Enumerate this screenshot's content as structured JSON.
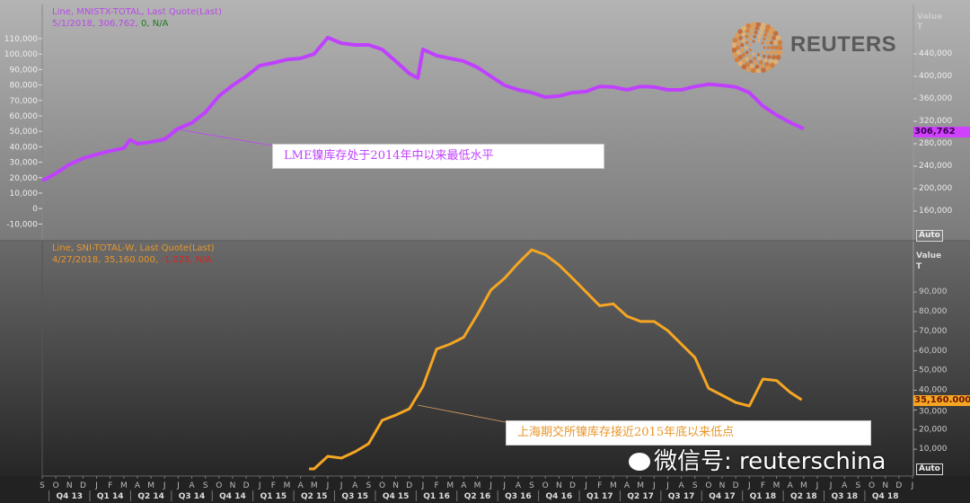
{
  "colors": {
    "lme": "#c040ff",
    "shfe": "#f5a623",
    "green": "#1f7a1f",
    "red": "#e02020"
  },
  "top_legend": {
    "line1": "Line, MNISTX-TOTAL, Last Quote(Last)",
    "line2_main": "5/1/2018, 306,762,",
    "line2_change": "0, N/A"
  },
  "bottom_legend": {
    "line1": "Line, SNI-TOTAL-W, Last Quote(Last)",
    "line2_main": "4/27/2018, 35,160.000,",
    "line2_change": "-1,025, N/A"
  },
  "top_annotation": "LME镍库存处于2014年中以来最低水平",
  "bottom_annotation": "上海期交所镍库存接近2015年底以来低点",
  "top_last_value": "306,762",
  "bottom_last_value": "35,160.000",
  "top_axis": {
    "header": "Value",
    "unit": "T",
    "auto": "Auto"
  },
  "bottom_axis": {
    "header": "Value",
    "unit": "T",
    "auto": "Auto"
  },
  "brand": "REUTERS",
  "watermark": "微信号: reuterschina",
  "chart_data": [
    {
      "type": "line",
      "title": "Line, MNISTX-TOTAL, Last Quote(Last)",
      "ylim": [
        150000,
        470000
      ],
      "right_ticks": [
        "440,000",
        "400,000",
        "360,000",
        "320,000",
        "280,000",
        "240,000",
        "200,000",
        "160,000"
      ],
      "left_ticks": [
        "110,000",
        "100,000",
        "90,000",
        "80,000",
        "70,000",
        "60,000",
        "50,000",
        "40,000",
        "30,000",
        "20,000",
        "10,000",
        "0",
        "-10,000"
      ],
      "series": [
        {
          "x": [
            "2013-09",
            "2013-10",
            "2013-11",
            "2013-12",
            "2014-01",
            "2014-02",
            "2014-03",
            "2014-03-15",
            "2014-04",
            "2014-05",
            "2014-06",
            "2014-07",
            "2014-08",
            "2014-09",
            "2014-10",
            "2014-11",
            "2014-12",
            "2015-01",
            "2015-02",
            "2015-03",
            "2015-04",
            "2015-05",
            "2015-06",
            "2015-07",
            "2015-08",
            "2015-09",
            "2015-10",
            "2015-11",
            "2015-12",
            "2015-12-20",
            "2016-01",
            "2016-02",
            "2016-03",
            "2016-04",
            "2016-05",
            "2016-06",
            "2016-07",
            "2016-08",
            "2016-09",
            "2016-10",
            "2016-11",
            "2016-12",
            "2017-01",
            "2017-02",
            "2017-03",
            "2017-04",
            "2017-05",
            "2017-06",
            "2017-07",
            "2017-08",
            "2017-09",
            "2017-10",
            "2017-11",
            "2017-12",
            "2018-01",
            "2018-02",
            "2018-03",
            "2018-04",
            "2018-05"
          ],
          "values": [
            214000,
            227000,
            243000,
            254000,
            261000,
            267000,
            272000,
            287000,
            280000,
            283000,
            288000,
            307000,
            317000,
            336000,
            365000,
            384000,
            400000,
            419000,
            424000,
            430000,
            432000,
            440000,
            469000,
            459000,
            456000,
            456000,
            448000,
            427000,
            405000,
            397000,
            448000,
            437000,
            432000,
            427000,
            416000,
            400000,
            384000,
            376000,
            371000,
            363000,
            365000,
            371000,
            373000,
            382000,
            381000,
            376000,
            382000,
            381000,
            376000,
            376000,
            382000,
            386000,
            384000,
            381000,
            371000,
            347000,
            331000,
            318000,
            306762
          ]
        }
      ]
    },
    {
      "type": "line",
      "title": "Line, SNI-TOTAL-W, Last Quote(Last)",
      "ylim": [
        0,
        115000
      ],
      "right_ticks": [
        "90,000",
        "80,000",
        "70,000",
        "60,000",
        "50,000",
        "40,000",
        "30,000",
        "20,000",
        "10,000"
      ],
      "series": [
        {
          "x": [
            "2015-04-20",
            "2015-05",
            "2015-06",
            "2015-07",
            "2015-08",
            "2015-09",
            "2015-10",
            "2015-11",
            "2015-12",
            "2016-01",
            "2016-02",
            "2016-03",
            "2016-04",
            "2016-05",
            "2016-06",
            "2016-07",
            "2016-08",
            "2016-09",
            "2016-10",
            "2016-11",
            "2016-12",
            "2017-01",
            "2017-02",
            "2017-03",
            "2017-04",
            "2017-05",
            "2017-06",
            "2017-07",
            "2017-08",
            "2017-09",
            "2017-10",
            "2017-11",
            "2017-12",
            "2018-01",
            "2018-02",
            "2018-03",
            "2018-04",
            "2018-04-27"
          ],
          "values": [
            0,
            0,
            6400,
            5500,
            8700,
            12800,
            24700,
            27400,
            30600,
            42000,
            61000,
            63500,
            67000,
            78600,
            91000,
            97000,
            104700,
            111500,
            109000,
            103800,
            97000,
            90000,
            83000,
            84000,
            77700,
            75000,
            75000,
            70400,
            63500,
            56700,
            41000,
            37500,
            33800,
            32000,
            45700,
            45000,
            39000,
            35160
          ]
        }
      ]
    }
  ],
  "x_axis": {
    "months": [
      "S",
      "O",
      "N",
      "D",
      "J",
      "F",
      "M",
      "A",
      "M",
      "J",
      "J",
      "A",
      "S",
      "O",
      "N",
      "D",
      "J",
      "F",
      "M",
      "A",
      "M",
      "J",
      "J",
      "A",
      "S",
      "O",
      "N",
      "D",
      "J",
      "F",
      "M",
      "A",
      "M",
      "J",
      "J",
      "A",
      "S",
      "O",
      "N",
      "D",
      "J",
      "F",
      "M",
      "A",
      "M",
      "J",
      "J",
      "A",
      "S",
      "O",
      "N",
      "D",
      "J",
      "F",
      "M",
      "A",
      "M",
      "J",
      "J",
      "A",
      "S",
      "O",
      "N",
      "D",
      "J"
    ],
    "quarters": [
      "Q4 13",
      "Q1 14",
      "Q2 14",
      "Q3 14",
      "Q4 14",
      "Q1 15",
      "Q2 15",
      "Q3 15",
      "Q4 15",
      "Q1 16",
      "Q2 16",
      "Q3 16",
      "Q4 16",
      "Q1 17",
      "Q2 17",
      "Q3 17",
      "Q4 17",
      "Q1 18",
      "Q2 18",
      "Q3 18",
      "Q4 18"
    ]
  }
}
